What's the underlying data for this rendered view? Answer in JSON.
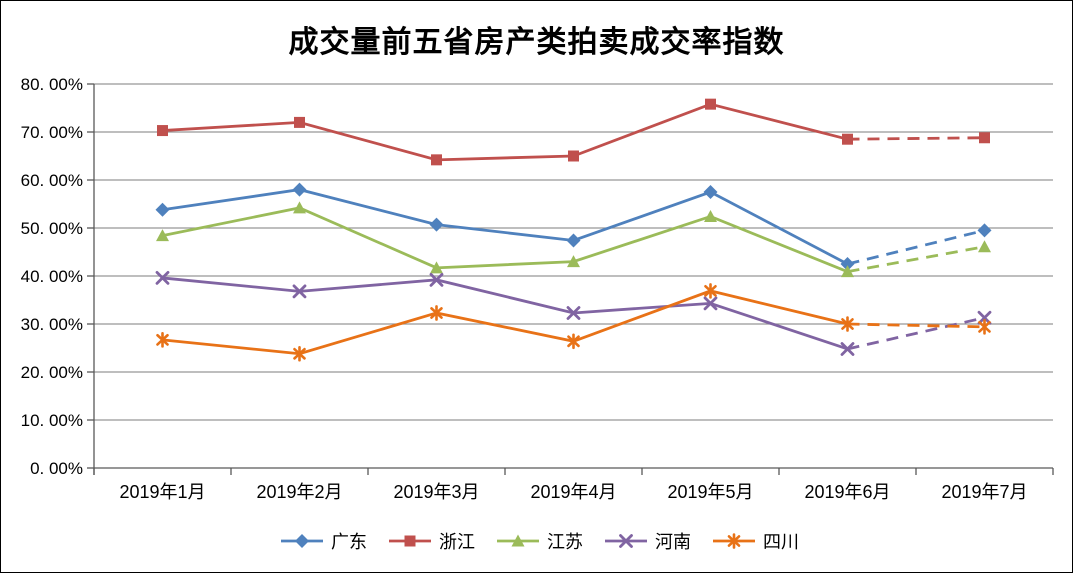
{
  "window": {
    "background": "#ffffff",
    "border_color": "#000000"
  },
  "chart_data": {
    "type": "line",
    "title": "成交量前五省房产类拍卖成交率指数",
    "categories": [
      "2019年1月",
      "2019年2月",
      "2019年3月",
      "2019年4月",
      "2019年5月",
      "2019年6月",
      "2019年7月"
    ],
    "xlabel": "",
    "ylabel": "",
    "ylim": [
      0,
      80
    ],
    "y_tick_step": 10,
    "y_tick_labels": [
      "0. 00%",
      "10. 00%",
      "20. 00%",
      "30. 00%",
      "40. 00%",
      "50. 00%",
      "60. 00%",
      "70. 00%",
      "80. 00%"
    ],
    "grid": true,
    "legend_position": "bottom",
    "dashed_from_index": 5,
    "dashed_note": "segment between 2019年6月 and 2019年7月 is dashed for every series",
    "axis_color": "#595959",
    "gridline_color": "#969696",
    "series": [
      {
        "name": "广东",
        "color": "#4F81BD",
        "marker": "diamond",
        "values": [
          53.8,
          58.0,
          50.7,
          47.4,
          57.5,
          42.5,
          49.5
        ]
      },
      {
        "name": "浙江",
        "color": "#C0504D",
        "marker": "square",
        "values": [
          70.3,
          72.0,
          64.2,
          65.0,
          75.8,
          68.5,
          68.8
        ]
      },
      {
        "name": "江苏",
        "color": "#9BBB59",
        "marker": "triangle",
        "values": [
          48.4,
          54.2,
          41.7,
          43.0,
          52.4,
          40.9,
          46.1
        ]
      },
      {
        "name": "河南",
        "color": "#8064A2",
        "marker": "x",
        "values": [
          39.6,
          36.8,
          39.2,
          32.3,
          34.3,
          24.8,
          31.3
        ]
      },
      {
        "name": "四川",
        "color": "#E87217",
        "marker": "asterisk",
        "values": [
          26.7,
          23.8,
          32.3,
          26.4,
          36.9,
          30.0,
          29.4
        ]
      }
    ]
  }
}
